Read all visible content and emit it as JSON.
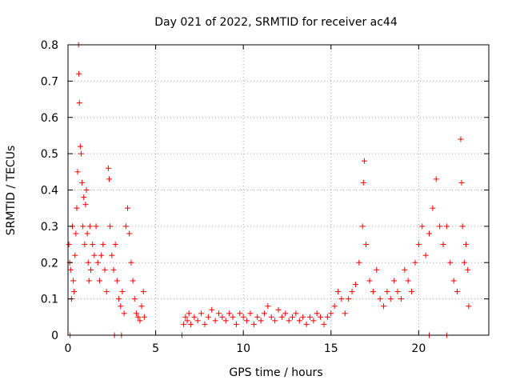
{
  "chart_data": {
    "type": "scatter",
    "title": "Day 021 of 2022, SRMTID for receiver ac44",
    "xlabel": "GPS time / hours",
    "ylabel": "SRMTID / TECUs",
    "xlim": [
      0,
      24
    ],
    "ylim": [
      0,
      0.8
    ],
    "xticks": [
      0,
      5,
      10,
      15,
      20
    ],
    "yticks": [
      0,
      0.1,
      0.2,
      0.3,
      0.4,
      0.5,
      0.6,
      0.7,
      0.8
    ],
    "xtick_labels": [
      "0",
      "5",
      "10",
      "15",
      "20"
    ],
    "ytick_labels": [
      "0",
      "0.1",
      "0.2",
      "0.3",
      "0.4",
      "0.5",
      "0.6",
      "0.7",
      "0.8"
    ],
    "grid": true,
    "marker": "+",
    "color": "#ff0000",
    "series": [
      {
        "name": "SRMTID",
        "points": [
          [
            0.05,
            0.25
          ],
          [
            0.1,
            0.2
          ],
          [
            0.15,
            0.18
          ],
          [
            0.2,
            0.1
          ],
          [
            0.25,
            0.3
          ],
          [
            0.3,
            0.15
          ],
          [
            0.35,
            0.12
          ],
          [
            0.4,
            0.22
          ],
          [
            0.45,
            0.28
          ],
          [
            0.5,
            0.35
          ],
          [
            0.55,
            0.45
          ],
          [
            0.6,
            0.8
          ],
          [
            0.62,
            0.72
          ],
          [
            0.65,
            0.64
          ],
          [
            0.7,
            0.52
          ],
          [
            0.75,
            0.5
          ],
          [
            0.8,
            0.42
          ],
          [
            0.85,
            0.3
          ],
          [
            0.9,
            0.38
          ],
          [
            0.95,
            0.25
          ],
          [
            1.0,
            0.36
          ],
          [
            1.05,
            0.4
          ],
          [
            1.1,
            0.28
          ],
          [
            1.15,
            0.2
          ],
          [
            1.2,
            0.15
          ],
          [
            1.25,
            0.3
          ],
          [
            1.3,
            0.18
          ],
          [
            1.4,
            0.25
          ],
          [
            1.5,
            0.22
          ],
          [
            1.6,
            0.3
          ],
          [
            1.7,
            0.2
          ],
          [
            1.8,
            0.15
          ],
          [
            1.9,
            0.22
          ],
          [
            2.0,
            0.25
          ],
          [
            2.1,
            0.18
          ],
          [
            2.2,
            0.12
          ],
          [
            2.3,
            0.46
          ],
          [
            2.35,
            0.43
          ],
          [
            2.4,
            0.3
          ],
          [
            2.5,
            0.22
          ],
          [
            2.6,
            0.18
          ],
          [
            2.7,
            0.25
          ],
          [
            2.8,
            0.15
          ],
          [
            2.9,
            0.1
          ],
          [
            3.0,
            0.08
          ],
          [
            3.1,
            0.12
          ],
          [
            3.2,
            0.06
          ],
          [
            3.3,
            0.3
          ],
          [
            3.4,
            0.35
          ],
          [
            3.5,
            0.28
          ],
          [
            3.6,
            0.2
          ],
          [
            3.7,
            0.15
          ],
          [
            3.8,
            0.1
          ],
          [
            3.9,
            0.06
          ],
          [
            4.0,
            0.05
          ],
          [
            4.1,
            0.04
          ],
          [
            4.2,
            0.08
          ],
          [
            4.3,
            0.12
          ],
          [
            4.35,
            0.05
          ],
          [
            0.12,
            0.0
          ],
          [
            2.65,
            0.0
          ],
          [
            3.05,
            0.0
          ],
          [
            6.5,
            0.0
          ],
          [
            6.6,
            0.03
          ],
          [
            6.7,
            0.05
          ],
          [
            6.8,
            0.04
          ],
          [
            6.9,
            0.06
          ],
          [
            7.0,
            0.03
          ],
          [
            7.2,
            0.05
          ],
          [
            7.4,
            0.04
          ],
          [
            7.6,
            0.06
          ],
          [
            7.8,
            0.03
          ],
          [
            8.0,
            0.05
          ],
          [
            8.2,
            0.07
          ],
          [
            8.4,
            0.04
          ],
          [
            8.6,
            0.06
          ],
          [
            8.8,
            0.05
          ],
          [
            9.0,
            0.04
          ],
          [
            9.2,
            0.06
          ],
          [
            9.4,
            0.05
          ],
          [
            9.6,
            0.03
          ],
          [
            9.8,
            0.06
          ],
          [
            10.0,
            0.05
          ],
          [
            10.2,
            0.04
          ],
          [
            10.4,
            0.06
          ],
          [
            10.6,
            0.03
          ],
          [
            10.8,
            0.05
          ],
          [
            11.0,
            0.04
          ],
          [
            11.2,
            0.06
          ],
          [
            11.4,
            0.08
          ],
          [
            11.6,
            0.05
          ],
          [
            11.8,
            0.04
          ],
          [
            12.0,
            0.07
          ],
          [
            12.2,
            0.05
          ],
          [
            12.4,
            0.06
          ],
          [
            12.6,
            0.04
          ],
          [
            12.8,
            0.05
          ],
          [
            13.0,
            0.06
          ],
          [
            13.2,
            0.04
          ],
          [
            13.4,
            0.05
          ],
          [
            13.6,
            0.03
          ],
          [
            13.8,
            0.05
          ],
          [
            14.0,
            0.04
          ],
          [
            14.2,
            0.06
          ],
          [
            14.4,
            0.05
          ],
          [
            14.6,
            0.03
          ],
          [
            14.8,
            0.05
          ],
          [
            15.0,
            0.06
          ],
          [
            15.2,
            0.08
          ],
          [
            15.4,
            0.12
          ],
          [
            15.6,
            0.1
          ],
          [
            15.8,
            0.06
          ],
          [
            16.0,
            0.1
          ],
          [
            16.2,
            0.12
          ],
          [
            16.4,
            0.14
          ],
          [
            16.6,
            0.2
          ],
          [
            16.8,
            0.3
          ],
          [
            16.85,
            0.42
          ],
          [
            16.9,
            0.48
          ],
          [
            17.0,
            0.25
          ],
          [
            17.2,
            0.15
          ],
          [
            17.4,
            0.12
          ],
          [
            17.6,
            0.18
          ],
          [
            17.8,
            0.1
          ],
          [
            18.0,
            0.08
          ],
          [
            18.2,
            0.12
          ],
          [
            18.4,
            0.1
          ],
          [
            18.6,
            0.15
          ],
          [
            18.8,
            0.12
          ],
          [
            19.0,
            0.1
          ],
          [
            19.2,
            0.18
          ],
          [
            19.4,
            0.15
          ],
          [
            19.6,
            0.12
          ],
          [
            19.8,
            0.2
          ],
          [
            20.0,
            0.25
          ],
          [
            20.2,
            0.3
          ],
          [
            20.4,
            0.22
          ],
          [
            20.6,
            0.28
          ],
          [
            20.8,
            0.35
          ],
          [
            21.0,
            0.43
          ],
          [
            21.2,
            0.3
          ],
          [
            21.4,
            0.25
          ],
          [
            21.6,
            0.3
          ],
          [
            21.8,
            0.2
          ],
          [
            22.0,
            0.15
          ],
          [
            22.2,
            0.12
          ],
          [
            22.4,
            0.54
          ],
          [
            22.45,
            0.42
          ],
          [
            22.5,
            0.3
          ],
          [
            22.6,
            0.2
          ],
          [
            22.7,
            0.25
          ],
          [
            22.8,
            0.18
          ],
          [
            22.85,
            0.08
          ],
          [
            20.6,
            0.0
          ],
          [
            21.6,
            0.0
          ]
        ]
      }
    ]
  }
}
